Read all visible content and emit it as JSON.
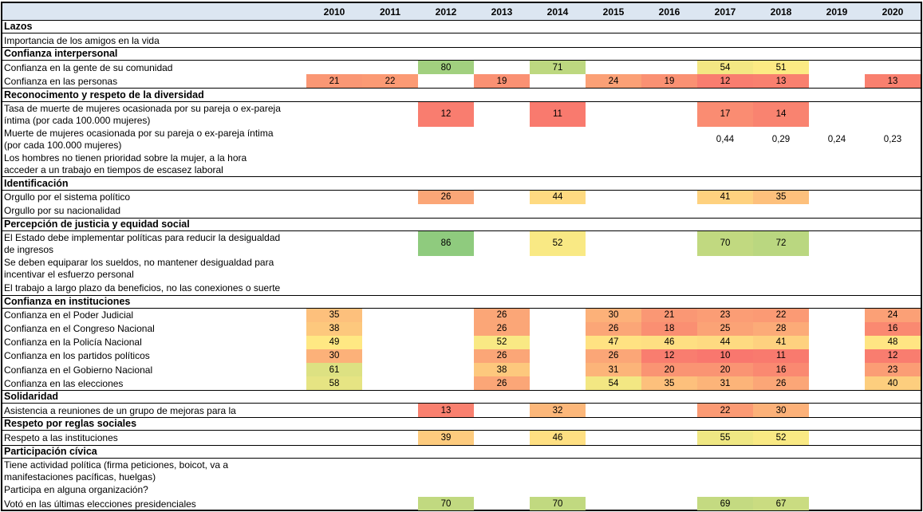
{
  "chart_data": {
    "type": "heatmap",
    "columns": [
      "2010",
      "2011",
      "2012",
      "2013",
      "2014",
      "2015",
      "2016",
      "2017",
      "2018",
      "2019",
      "2020"
    ],
    "header_bg": "#DCE6F1",
    "border_color": "#000000",
    "color_scale": {
      "min": 5,
      "min_color": "#F8696B",
      "mid": 50,
      "mid_color": "#FFEB84",
      "max": 100,
      "max_color": "#63BE7B"
    },
    "sections": [
      {
        "title": "Lazos",
        "rows": [
          {
            "label": [
              "Importancia de los amigos en la vida"
            ],
            "values": {}
          }
        ]
      },
      {
        "title": "Confianza interpersonal",
        "rows": [
          {
            "label": [
              "Confianza en la gente de su comunidad"
            ],
            "values": {
              "2012": 80,
              "2014": 71,
              "2017": 54,
              "2018": 51
            }
          },
          {
            "label": [
              "Confianza en las personas"
            ],
            "values": {
              "2010": 21,
              "2011": 22,
              "2013": 19,
              "2015": 24,
              "2016": 19,
              "2017": 12,
              "2018": 13,
              "2020": 13
            }
          }
        ]
      },
      {
        "title": "Reconocimento y respeto de la diversidad",
        "rows": [
          {
            "label": [
              "Tasa de muerte de mujeres ocasionada por su pareja o ex-pareja",
              "íntima (por cada 100.000 mujeres)"
            ],
            "values": {
              "2012": 12,
              "2014": 11,
              "2017": 17,
              "2018": 14
            }
          },
          {
            "label": [
              "Muerte de mujeres ocasionada por su pareja o ex-pareja íntima",
              "(por cada 100.000 mujeres)"
            ],
            "values": {
              "2017": "0,44",
              "2018": "0,29",
              "2019": "0,24",
              "2020": "0,23"
            }
          },
          {
            "label": [
              "Los hombres no tienen prioridad sobre la mujer, a la hora",
              "acceder a un trabajo en tiempos de escasez laboral"
            ],
            "values": {}
          }
        ]
      },
      {
        "title": "Identificación",
        "rows": [
          {
            "label": [
              "Orgullo por el sistema político"
            ],
            "values": {
              "2012": 26,
              "2014": 44,
              "2017": 41,
              "2018": 35
            }
          },
          {
            "label": [
              "Orgullo por su nacionalidad"
            ],
            "values": {}
          }
        ]
      },
      {
        "title": "Percepción de justicia y equidad social",
        "rows": [
          {
            "label": [
              "El Estado debe implementar políticas para reducir la desigualdad",
              "de ingresos"
            ],
            "values": {
              "2012": 86,
              "2014": 52,
              "2017": 70,
              "2018": 72
            }
          },
          {
            "label": [
              "Se deben equiparar los sueldos, no mantener desigualdad para",
              "incentivar el esfuerzo personal"
            ],
            "values": {}
          },
          {
            "label": [
              "El trabajo a largo plazo da beneficios, no las conexiones o suerte"
            ],
            "values": {}
          }
        ]
      },
      {
        "title": "Confianza en instituciones",
        "rows": [
          {
            "label": [
              "Confianza en el Poder Judicial"
            ],
            "values": {
              "2010": 35,
              "2013": 26,
              "2015": 30,
              "2016": 21,
              "2017": 23,
              "2018": 22,
              "2020": 24
            }
          },
          {
            "label": [
              "Confianza en el Congreso Nacional"
            ],
            "values": {
              "2010": 38,
              "2013": 26,
              "2015": 26,
              "2016": 18,
              "2017": 25,
              "2018": 28,
              "2020": 16
            }
          },
          {
            "label": [
              "Confianza en la Policía Nacional"
            ],
            "values": {
              "2010": 49,
              "2013": 52,
              "2015": 47,
              "2016": 46,
              "2017": 44,
              "2018": 41,
              "2020": 48
            }
          },
          {
            "label": [
              "Confianza en los partidos políticos"
            ],
            "values": {
              "2010": 30,
              "2013": 26,
              "2015": 26,
              "2016": 12,
              "2017": 10,
              "2018": 11,
              "2020": 12
            }
          },
          {
            "label": [
              "Confianza en el Gobierno Nacional"
            ],
            "values": {
              "2010": 61,
              "2013": 38,
              "2015": 31,
              "2016": 20,
              "2017": 20,
              "2018": 16,
              "2020": 23
            }
          },
          {
            "label": [
              "Confianza en las elecciones"
            ],
            "values": {
              "2010": 58,
              "2013": 26,
              "2015": 54,
              "2016": 35,
              "2017": 31,
              "2018": 26,
              "2020": 40
            }
          }
        ]
      },
      {
        "title": "Solidaridad",
        "rows": [
          {
            "label": [
              "Asistencia a reuniones de un grupo de mejoras para la"
            ],
            "values": {
              "2012": 13,
              "2014": 32,
              "2017": 22,
              "2018": 30
            }
          }
        ]
      },
      {
        "title": "Respeto por reglas sociales",
        "rows": [
          {
            "label": [
              "Respeto a las instituciones"
            ],
            "values": {
              "2012": 39,
              "2014": 46,
              "2017": 55,
              "2018": 52
            }
          }
        ]
      },
      {
        "title": "Participación cívica",
        "rows": [
          {
            "label": [
              "Tiene actividad política (firma peticiones, boicot, va a",
              "manifestaciones pacíficas, huelgas)"
            ],
            "values": {}
          },
          {
            "label": [
              "Participa en alguna organización?"
            ],
            "values": {}
          },
          {
            "label": [
              "Votó en las últimas elecciones presidenciales"
            ],
            "values": {
              "2012": 70,
              "2014": 70,
              "2017": 69,
              "2018": 67
            }
          }
        ]
      }
    ]
  }
}
